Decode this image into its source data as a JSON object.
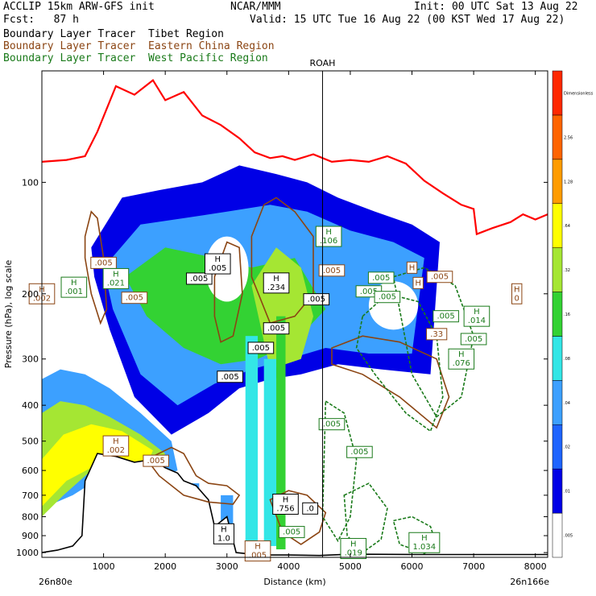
{
  "header": {
    "model": "ACCLIP 15km ARW-GFS init",
    "center": "NCAR/MMM",
    "init": "Init: 00 UTC Sat 13 Aug 22",
    "fcst": "Fcst:   87 h",
    "valid": "Valid: 15 UTC Tue 16 Aug 22 (00 KST Wed 17 Aug 22)",
    "legend": [
      "Boundary Layer Tracer  Tibet Region",
      "Boundary Layer Tracer  Eastern China Region",
      "Boundary Layer Tracer  West Pacific Region"
    ]
  },
  "colors": {
    "tibet": "#000000",
    "eastern_china": "#8b4513",
    "west_pacific": "#1a7a1a",
    "tropopause": "#ff0000"
  },
  "chart_data": {
    "type": "heatmap",
    "xlabel": "Distance (km)",
    "ylabel": "Pressure (hPa), log scale",
    "x_ticks": [
      1000,
      2000,
      3000,
      4000,
      5000,
      6000,
      7000,
      8000
    ],
    "x_range": [
      0,
      8200
    ],
    "y_ticks": [
      100,
      200,
      300,
      400,
      500,
      600,
      700,
      800,
      900,
      1000
    ],
    "y_range": [
      1030,
      50
    ],
    "y_scale": "log",
    "left_endpoint": "26n80e",
    "right_endpoint": "26n166e",
    "marker": {
      "label": "ROAH",
      "x": 4550
    },
    "colorbar": {
      "levels": [
        ".005",
        ".01",
        ".02",
        ".04",
        ".08",
        ".16",
        ".32",
        ".64",
        "1.28",
        "2.56",
        "Dimensionless"
      ],
      "colors": [
        "#ffffff",
        "#0000e6",
        "#1e64ff",
        "#3ca0ff",
        "#33e6e6",
        "#33d233",
        "#a5e633",
        "#ffff00",
        "#ff9c00",
        "#ff6400",
        "#ff2800"
      ]
    },
    "tropopause": {
      "x": [
        0,
        400,
        700,
        900,
        1200,
        1500,
        1800,
        2000,
        2300,
        2600,
        2900,
        3200,
        3450,
        3700,
        3900,
        4100,
        4400,
        4700,
        5000,
        5300,
        5600,
        5900,
        6200,
        6500,
        6800,
        7000,
        7050,
        7300,
        7600,
        7800,
        8000,
        8200
      ],
      "hpa": [
        88,
        87,
        85,
        73,
        55,
        58,
        53,
        60,
        57,
        66,
        70,
        76,
        83,
        86,
        85,
        87,
        84,
        88,
        87,
        88,
        85,
        89,
        99,
        107,
        115,
        118,
        138,
        133,
        128,
        122,
        126,
        122
      ]
    },
    "topography": {
      "x": [
        0,
        250,
        500,
        650,
        700,
        900,
        1200,
        1500,
        1800,
        2000,
        2200,
        2300,
        2500,
        2700,
        2800,
        3000,
        3150,
        3400,
        3700,
        4000,
        4500,
        5000,
        6000,
        7000,
        8200
      ],
      "hpa": [
        1000,
        985,
        960,
        900,
        640,
        540,
        550,
        570,
        560,
        590,
        610,
        640,
        660,
        720,
        850,
        800,
        1000,
        1010,
        1015,
        1015,
        1018,
        1010,
        1012,
        1012,
        1012
      ]
    },
    "tracer_concentration": [
      {
        "x": [
          800,
          1300,
          1900,
          2600,
          3200,
          3800,
          4300,
          4800,
          5400,
          6000,
          6450,
          6300,
          5500,
          4800,
          4200,
          3700,
          3200,
          2700,
          2100,
          1500,
          1100,
          850
        ],
        "hpa": [
          150,
          110,
          105,
          100,
          90,
          95,
          100,
          110,
          120,
          130,
          145,
          330,
          320,
          310,
          330,
          340,
          360,
          420,
          480,
          380,
          250,
          180
        ],
        "level": ".01"
      },
      {
        "x": [
          1000,
          1600,
          2300,
          3000,
          3700,
          4300,
          5000,
          5700,
          6200,
          6000,
          5300,
          4600,
          4000,
          3400,
          2800,
          2200,
          1600,
          1150
        ],
        "hpa": [
          170,
          130,
          125,
          120,
          115,
          120,
          135,
          145,
          160,
          290,
          290,
          280,
          300,
          320,
          350,
          400,
          330,
          220
        ],
        "level": ".04"
      },
      {
        "x": [
          1350,
          2000,
          2800,
          3400,
          4100,
          4600,
          4100,
          3500,
          2900,
          2300,
          1700
        ],
        "hpa": [
          180,
          150,
          160,
          170,
          160,
          220,
          270,
          300,
          310,
          280,
          230
        ],
        "level": ".16"
      },
      {
        "x": [
          3400,
          3800,
          4200,
          4400,
          4200,
          3700
        ],
        "hpa": [
          190,
          150,
          170,
          230,
          300,
          320
        ],
        "level": ".32"
      },
      {
        "x": [
          0,
          300,
          700,
          1100,
          1600,
          2100,
          2200,
          2000,
          1500,
          1000,
          500,
          0
        ],
        "hpa": [
          340,
          320,
          330,
          360,
          420,
          500,
          600,
          620,
          600,
          620,
          700,
          760
        ],
        "level": ".04"
      },
      {
        "x": [
          0,
          300,
          700,
          1100,
          1600,
          2000,
          1800,
          1300,
          800,
          350,
          0
        ],
        "hpa": [
          420,
          390,
          400,
          430,
          480,
          540,
          590,
          570,
          600,
          700,
          800
        ],
        "level": ".32"
      },
      {
        "x": [
          0,
          350,
          800,
          1300,
          1800,
          1700,
          1300,
          800,
          400,
          0
        ],
        "hpa": [
          560,
          480,
          450,
          470,
          530,
          580,
          570,
          590,
          640,
          750
        ],
        "level": ".64"
      }
    ],
    "tracer_columns": [
      {
        "x": [
          3300,
          3500
        ],
        "hpa": [
          260,
          1000
        ],
        "level": ".08"
      },
      {
        "x": [
          3600,
          3800
        ],
        "hpa": [
          300,
          960
        ],
        "level": ".08"
      },
      {
        "x": [
          3800,
          3950
        ],
        "hpa": [
          230,
          980
        ],
        "level": ".16"
      },
      {
        "x": [
          2350,
          2550
        ],
        "hpa": [
          650,
          980
        ],
        "level": ".04"
      },
      {
        "x": [
          2900,
          3100
        ],
        "hpa": [
          700,
          990
        ],
        "level": ".04"
      }
    ],
    "gaps": [
      {
        "x": [
          2650,
          3350
        ],
        "hpa": [
          140,
          210
        ]
      },
      {
        "x": [
          5300,
          6100
        ],
        "hpa": [
          185,
          250
        ]
      }
    ],
    "contours_eastern_china": [
      {
        "x": [
          700,
          800,
          900,
          1000,
          1050,
          950,
          800,
          700
        ],
        "hpa": [
          140,
          120,
          125,
          160,
          220,
          240,
          200,
          160
        ]
      },
      {
        "x": [
          2800,
          3000,
          3200,
          3250,
          3100,
          2900,
          2800
        ],
        "hpa": [
          180,
          145,
          150,
          200,
          260,
          270,
          230
        ]
      },
      {
        "x": [
          3400,
          3600,
          3800,
          4100,
          4400,
          4400,
          4100,
          3700,
          3400
        ],
        "hpa": [
          140,
          115,
          110,
          120,
          140,
          200,
          230,
          240,
          180
        ]
      },
      {
        "x": [
          4700,
          5200,
          5800,
          6400,
          6600,
          6400,
          5800,
          5200,
          4700
        ],
        "hpa": [
          280,
          260,
          270,
          300,
          380,
          460,
          380,
          330,
          310
        ]
      },
      {
        "x": [
          1700,
          2100,
          2300,
          2500,
          2700,
          3000,
          3200,
          3100,
          2700,
          2300,
          1900
        ],
        "hpa": [
          560,
          520,
          540,
          620,
          650,
          660,
          700,
          740,
          730,
          700,
          620
        ]
      },
      {
        "x": [
          3700,
          4000,
          4300,
          4600,
          4500,
          4200,
          3900
        ],
        "hpa": [
          720,
          680,
          700,
          780,
          880,
          950,
          880
        ]
      }
    ],
    "contours_west_pacific": [
      {
        "x": [
          5200,
          5600,
          6100,
          6400,
          6500,
          6300,
          5900,
          5400,
          5100
        ],
        "hpa": [
          230,
          200,
          210,
          260,
          380,
          470,
          420,
          330,
          280
        ]
      },
      {
        "x": [
          5700,
          6200,
          6700,
          7000,
          6800,
          6400,
          6000
        ],
        "hpa": [
          180,
          170,
          190,
          260,
          380,
          430,
          330
        ]
      },
      {
        "x": [
          4600,
          4900,
          5100,
          5000,
          4800,
          4550
        ],
        "hpa": [
          390,
          420,
          560,
          800,
          930,
          800
        ]
      },
      {
        "x": [
          4900,
          5300,
          5600,
          5500,
          5200,
          4950
        ],
        "hpa": [
          700,
          650,
          760,
          920,
          1000,
          900
        ]
      },
      {
        "x": [
          5700,
          6000,
          6300,
          6400,
          6200,
          5800
        ],
        "hpa": [
          820,
          800,
          850,
          960,
          1005,
          950
        ]
      }
    ],
    "labels": [
      {
        "text": ".005",
        "x": 1000,
        "hpa": 165,
        "series": "eastern_china"
      },
      {
        "text": ".005",
        "x": 2550,
        "hpa": 182,
        "series": "tibet"
      },
      {
        "text": "H\n.005",
        "x": 2850,
        "hpa": 166,
        "series": "tibet"
      },
      {
        "text": "H\n.021",
        "x": 1200,
        "hpa": 182,
        "series": "wp"
      },
      {
        "text": "H\n.001",
        "x": 520,
        "hpa": 192,
        "series": "wp"
      },
      {
        "text": "H\n.002",
        "x": 0,
        "hpa": 200,
        "series": "eastern_china"
      },
      {
        "text": ".005",
        "x": 1500,
        "hpa": 205,
        "series": "eastern_china"
      },
      {
        "text": "H\n.234",
        "x": 3800,
        "hpa": 187,
        "series": "tibet"
      },
      {
        "text": ".005",
        "x": 4450,
        "hpa": 207,
        "series": "tibet"
      },
      {
        "text": "H\n.106",
        "x": 4650,
        "hpa": 140,
        "series": "wp"
      },
      {
        "text": ".005",
        "x": 4700,
        "hpa": 173,
        "series": "eastern_china"
      },
      {
        "text": ".005",
        "x": 5500,
        "hpa": 181,
        "series": "wp"
      },
      {
        "text": ".005",
        "x": 5300,
        "hpa": 197,
        "series": "wp"
      },
      {
        "text": ".005",
        "x": 5600,
        "hpa": 204,
        "series": "wp"
      },
      {
        "text": "H",
        "x": 6000,
        "hpa": 170,
        "series": "eastern_china"
      },
      {
        "text": "H",
        "x": 6100,
        "hpa": 187,
        "series": "eastern_china"
      },
      {
        "text": ".005",
        "x": 6450,
        "hpa": 180,
        "series": "eastern_china"
      },
      {
        "text": ".005",
        "x": 6550,
        "hpa": 230,
        "series": "wp"
      },
      {
        "text": ".33",
        "x": 6400,
        "hpa": 257,
        "series": "eastern_china"
      },
      {
        "text": "H\n.014",
        "x": 7050,
        "hpa": 230,
        "series": "wp"
      },
      {
        "text": ".005",
        "x": 7000,
        "hpa": 265,
        "series": "wp"
      },
      {
        "text": "H\n.076",
        "x": 6800,
        "hpa": 300,
        "series": "wp"
      },
      {
        "text": "H\n0",
        "x": 7700,
        "hpa": 200,
        "series": "eastern_china"
      },
      {
        "text": ".005",
        "x": 3800,
        "hpa": 248,
        "series": "tibet"
      },
      {
        "text": ".005",
        "x": 3550,
        "hpa": 280,
        "series": "tibet"
      },
      {
        "text": ".005",
        "x": 3050,
        "hpa": 335,
        "series": "tibet"
      },
      {
        "text": "H\n.002",
        "x": 1200,
        "hpa": 515,
        "series": "eastern_china"
      },
      {
        "text": ".005",
        "x": 1850,
        "hpa": 565,
        "series": "eastern_china"
      },
      {
        "text": ".005",
        "x": 4700,
        "hpa": 450,
        "series": "wp"
      },
      {
        "text": ".005",
        "x": 5150,
        "hpa": 535,
        "series": "wp"
      },
      {
        "text": "H\n.756",
        "x": 3950,
        "hpa": 740,
        "series": "tibet"
      },
      {
        "text": ".0",
        "x": 4350,
        "hpa": 760,
        "series": "tibet"
      },
      {
        "text": ".005",
        "x": 4050,
        "hpa": 880,
        "series": "wp"
      },
      {
        "text": "H\n1.034",
        "x": 6200,
        "hpa": 940,
        "series": "wp"
      },
      {
        "text": "H\n1.0",
        "x": 2950,
        "hpa": 890,
        "series": "tibet"
      },
      {
        "text": "H\n.005",
        "x": 3500,
        "hpa": 990,
        "series": "eastern_china"
      },
      {
        "text": "H\n.019",
        "x": 5050,
        "hpa": 975,
        "series": "wp"
      }
    ]
  }
}
